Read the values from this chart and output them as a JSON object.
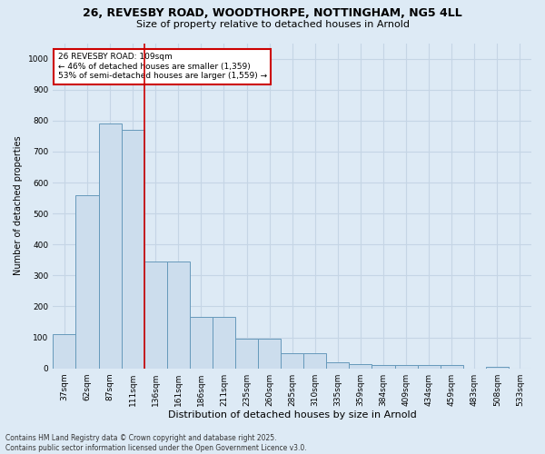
{
  "title_line1": "26, REVESBY ROAD, WOODTHORPE, NOTTINGHAM, NG5 4LL",
  "title_line2": "Size of property relative to detached houses in Arnold",
  "xlabel": "Distribution of detached houses by size in Arnold",
  "ylabel": "Number of detached properties",
  "categories": [
    "37sqm",
    "62sqm",
    "87sqm",
    "111sqm",
    "136sqm",
    "161sqm",
    "186sqm",
    "211sqm",
    "235sqm",
    "260sqm",
    "285sqm",
    "310sqm",
    "335sqm",
    "359sqm",
    "384sqm",
    "409sqm",
    "434sqm",
    "459sqm",
    "483sqm",
    "508sqm",
    "533sqm"
  ],
  "values": [
    110,
    560,
    790,
    770,
    345,
    345,
    165,
    165,
    95,
    95,
    50,
    50,
    20,
    15,
    10,
    10,
    10,
    10,
    0,
    5,
    0
  ],
  "bar_color": "#ccdded",
  "bar_edge_color": "#6699bb",
  "grid_color": "#c5d5e5",
  "background_color": "#ddeaf5",
  "vline_color": "#cc0000",
  "vline_x_index": 3,
  "annotation_text": "26 REVESBY ROAD: 109sqm\n← 46% of detached houses are smaller (1,359)\n53% of semi-detached houses are larger (1,559) →",
  "annotation_box_facecolor": "white",
  "annotation_box_edgecolor": "#cc0000",
  "footnote": "Contains HM Land Registry data © Crown copyright and database right 2025.\nContains public sector information licensed under the Open Government Licence v3.0.",
  "ylim": [
    0,
    1050
  ],
  "yticks": [
    0,
    100,
    200,
    300,
    400,
    500,
    600,
    700,
    800,
    900,
    1000
  ],
  "title1_fontsize": 9,
  "title2_fontsize": 8,
  "xlabel_fontsize": 8,
  "ylabel_fontsize": 7,
  "tick_fontsize": 6.5,
  "annot_fontsize": 6.5,
  "footnote_fontsize": 5.5
}
